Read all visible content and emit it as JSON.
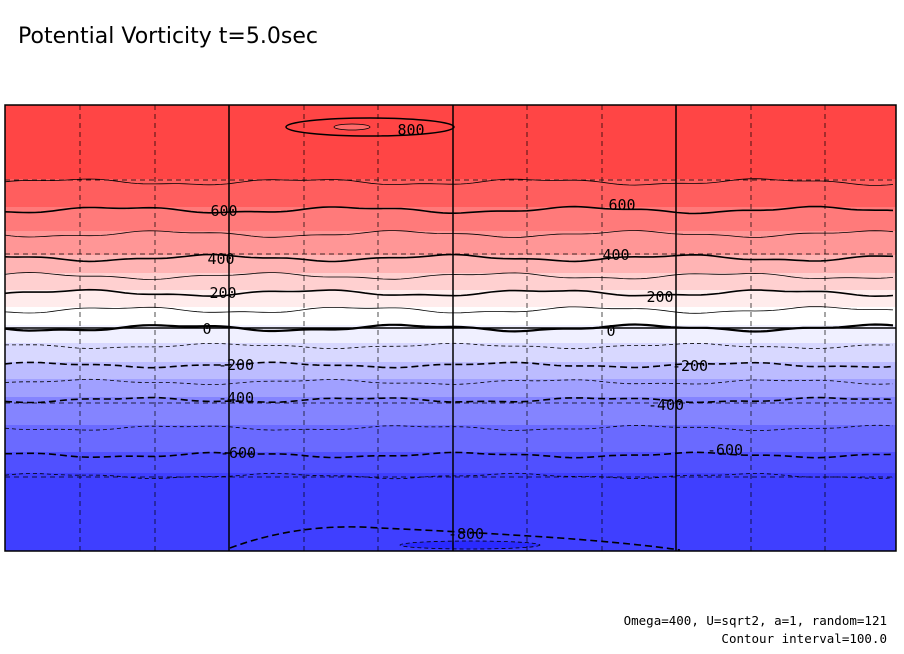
{
  "title": "Potential Vorticity t=5.0sec",
  "footer": {
    "params": "Omega=400, U=sqrt2, a=1, random=121",
    "contour": "Contour interval=100.0"
  },
  "chart_data": {
    "type": "heatmap",
    "title": "Potential Vorticity t=5.0sec",
    "variable": "potential vorticity",
    "time_sec": 5.0,
    "contour_interval": 100.0,
    "bands": [
      {
        "min": 700,
        "max": 800,
        "color": "#ff4545"
      },
      {
        "min": 600,
        "max": 700,
        "color": "#ff5e5e"
      },
      {
        "min": 500,
        "max": 600,
        "color": "#ff7a7a"
      },
      {
        "min": 400,
        "max": 500,
        "color": "#ff9696"
      },
      {
        "min": 300,
        "max": 400,
        "color": "#ffb4b4"
      },
      {
        "min": 200,
        "max": 300,
        "color": "#ffd0d0"
      },
      {
        "min": 100,
        "max": 200,
        "color": "#ffecec"
      },
      {
        "min": 0,
        "max": 100,
        "color": "#ffffff"
      },
      {
        "min": -100,
        "max": 0,
        "color": "#f0f0ff"
      },
      {
        "min": -200,
        "max": -100,
        "color": "#d8d8ff"
      },
      {
        "min": -300,
        "max": -200,
        "color": "#bcbcff"
      },
      {
        "min": -400,
        "max": -300,
        "color": "#a0a0ff"
      },
      {
        "min": -500,
        "max": -400,
        "color": "#8484ff"
      },
      {
        "min": -600,
        "max": -500,
        "color": "#6a6aff"
      },
      {
        "min": -700,
        "max": -600,
        "color": "#5050ff"
      },
      {
        "min": -800,
        "max": -700,
        "color": "#3f3fff"
      }
    ],
    "contour_labels": [
      {
        "value": "800",
        "count": 1
      },
      {
        "value": "600",
        "count": 2
      },
      {
        "value": "400",
        "count": 2
      },
      {
        "value": "200",
        "count": 2
      },
      {
        "value": "0",
        "count": 2
      },
      {
        "value": "-200",
        "count": 2
      },
      {
        "value": "-400",
        "count": 2
      },
      {
        "value": "-600",
        "count": 2
      },
      {
        "value": "-800",
        "count": 1
      }
    ],
    "grid": true,
    "colors": {
      "positive_max": "#ff4545",
      "negative_max": "#3f3fff",
      "zero": "#ffffff"
    }
  }
}
